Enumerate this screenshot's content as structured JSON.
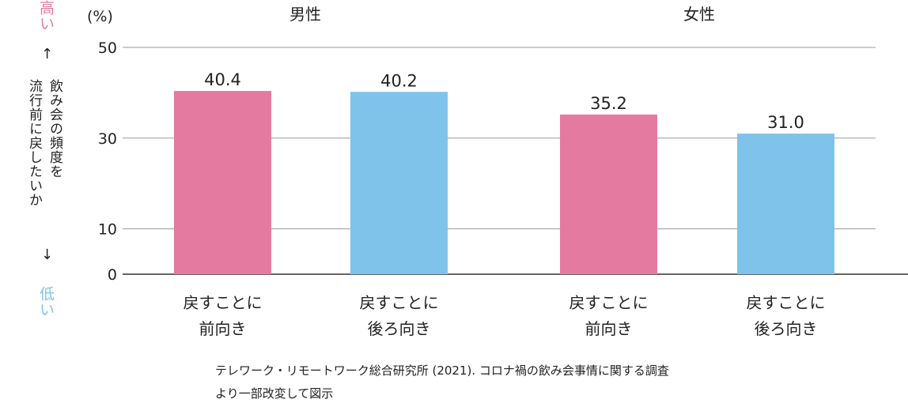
{
  "chart_data": {
    "type": "bar",
    "unit_label": "(%)",
    "groups": [
      {
        "name": "男性",
        "bars": [
          {
            "category": "戻すことに\n前向き",
            "value": 40.4,
            "label": "40.4",
            "color": "#e57aa1"
          },
          {
            "category": "戻すことに\n後ろ向き",
            "value": 40.2,
            "label": "40.2",
            "color": "#7fc3ea"
          }
        ]
      },
      {
        "name": "女性",
        "bars": [
          {
            "category": "戻すことに\n前向き",
            "value": 35.2,
            "label": "35.2",
            "color": "#e57aa1"
          },
          {
            "category": "戻すことに\n後ろ向き",
            "value": 31.0,
            "label": "31.0",
            "color": "#7fc3ea"
          }
        ]
      }
    ],
    "yticks": [
      "0",
      "10",
      "30",
      "50"
    ],
    "ylim": [
      0,
      50
    ],
    "grid": true
  },
  "axis_note": {
    "high": "高い",
    "low": "低い",
    "arrow_up": "↑",
    "arrow_down": "↓",
    "line1": "飲み会の頻度を",
    "line2": "流行前に戻したいか"
  },
  "source": {
    "line1": "テレワーク・リモートワーク総合研究所 (2021). コロナ禍の飲み会事情に関する調査",
    "line2": "より一部改変して図示"
  },
  "colors": {
    "positive": "#e57aa1",
    "negative": "#7fc3ea",
    "grid": "#999999",
    "axis": "#333333"
  }
}
